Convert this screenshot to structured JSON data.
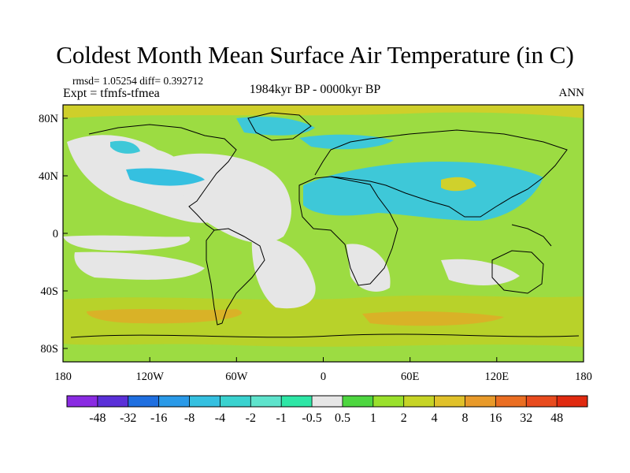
{
  "title": "Coldest Month Mean Surface Air Temperature (in C)",
  "stats": "rmsd= 1.05254 diff= 0.392712",
  "experiment": "Expt = tfmfs-tfmea",
  "period": "1984kyr BP - 0000kyr BP",
  "season": "ANN",
  "map": {
    "lon_ticks": [
      "180",
      "120W",
      "60W",
      "0",
      "60E",
      "120E",
      "180"
    ],
    "lat_ticks": [
      "80N",
      "40N",
      "0",
      "40S",
      "80S"
    ]
  },
  "colorbar": {
    "labels": [
      "-48",
      "-32",
      "-16",
      "-8",
      "-4",
      "-2",
      "-1",
      "-0.5",
      "0.5",
      "1",
      "2",
      "4",
      "8",
      "16",
      "32",
      "48"
    ],
    "colors": [
      "#8a2be2",
      "#5a30d8",
      "#1f6fe0",
      "#2a9ae8",
      "#35c0e0",
      "#3ad2cf",
      "#5ee3cc",
      "#2ee6a6",
      "#e6e6e6",
      "#4ed640",
      "#9ae02c",
      "#c6d426",
      "#e0c12a",
      "#e89a2a",
      "#ea6e22",
      "#e84b1e",
      "#e02a10"
    ]
  },
  "colors": {
    "background": "#ffffff",
    "ocean_base": "#9cdc42",
    "neutral": "#e6e6e6",
    "cool": "#3ec8d8",
    "warm": "#c8c82a",
    "coastline": "#000000"
  }
}
